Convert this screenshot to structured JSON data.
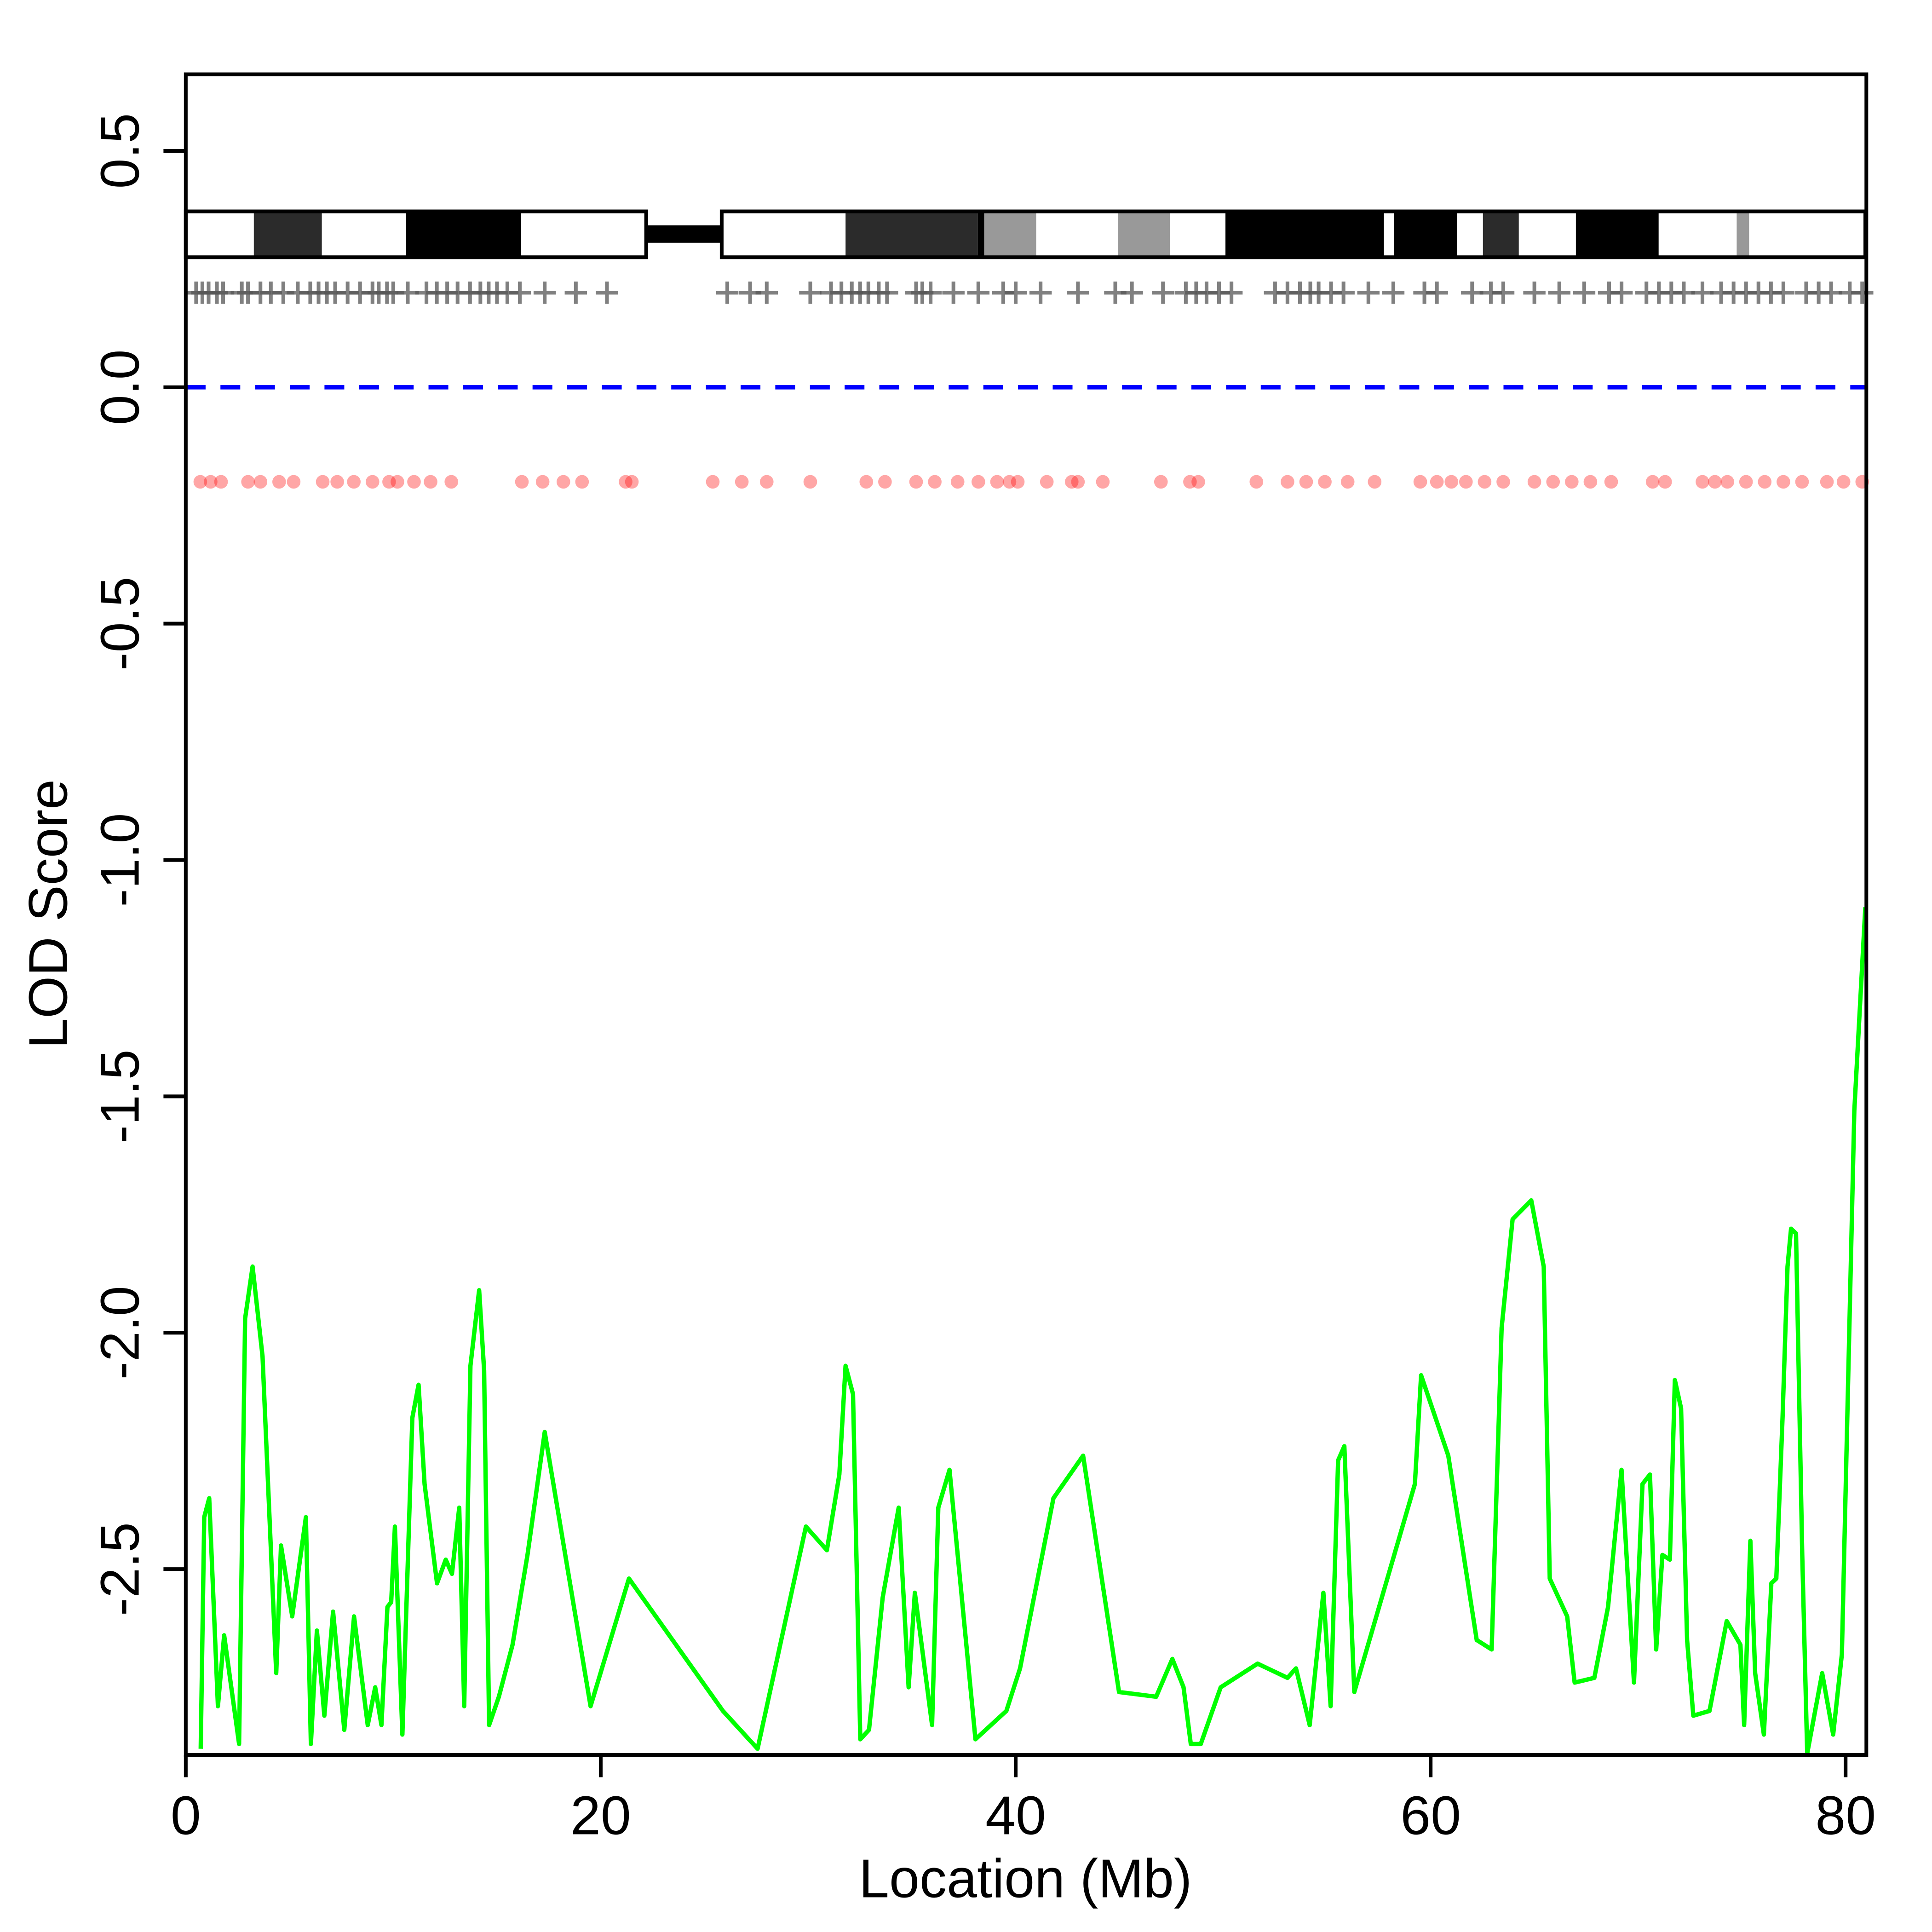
{
  "chart_data": {
    "type": "line",
    "xlabel": "Location (Mb)",
    "ylabel": "LOD Score",
    "xlim": [
      0,
      81
    ],
    "ylim": [
      -2.893,
      0.662
    ],
    "xticks": [
      0,
      20,
      40,
      60,
      80
    ],
    "yticks": [
      0.5,
      {
        "value": 0,
        "label": "0.0"
      },
      -0.5,
      {
        "value": -1,
        "label": "-1.0"
      },
      -1.5,
      {
        "value": -2,
        "label": "-2.0"
      },
      -2.5
    ],
    "hline": {
      "value": 0,
      "color": "#0000ff"
    },
    "line": {
      "color": "#00ff00",
      "x": [
        0.72,
        0.89,
        1.13,
        1.55,
        1.85,
        2.57,
        2.86,
        3.22,
        3.7,
        4.36,
        4.59,
        5.13,
        5.79,
        6.03,
        6.32,
        6.68,
        7.1,
        7.64,
        8.11,
        8.77,
        9.13,
        9.43,
        9.72,
        9.9,
        10.08,
        10.44,
        10.92,
        11.22,
        11.51,
        12.11,
        12.53,
        12.83,
        13.18,
        13.42,
        13.72,
        14.14,
        14.38,
        14.62,
        15.09,
        15.75,
        16.47,
        17.3,
        19.51,
        21.36,
        25.89,
        27.56,
        29.89,
        30.9,
        31.5,
        31.8,
        32.16,
        32.51,
        32.93,
        33.59,
        34.36,
        34.84,
        35.14,
        35.97,
        36.27,
        36.81,
        38.06,
        39.55,
        40.21,
        41.82,
        43.25,
        44.98,
        46.77,
        47.55,
        48.09,
        48.44,
        48.92,
        49.88,
        51.66,
        53.1,
        53.51,
        54.17,
        54.83,
        55.18,
        55.54,
        55.84,
        56.32,
        59.24,
        59.54,
        60.85,
        62.22,
        62.94,
        63.42,
        63.95,
        64.85,
        65.45,
        65.74,
        66.58,
        66.94,
        67.89,
        68.55,
        69.2,
        69.8,
        70.21,
        70.57,
        70.87,
        71.17,
        71.53,
        71.77,
        72.07,
        72.36,
        72.66,
        73.44,
        74.27,
        74.93,
        75.11,
        75.41,
        75.64,
        76.06,
        76.42,
        76.66,
        76.96,
        77.2,
        77.37,
        77.61,
        77.91,
        78.15,
        78.87,
        79.4,
        79.82,
        80.42,
        80.95
      ],
      "values": [
        -2.88,
        -2.39,
        -2.35,
        -2.79,
        -2.64,
        -2.87,
        -1.97,
        -1.86,
        -2.05,
        -2.72,
        -2.45,
        -2.6,
        -2.39,
        -2.87,
        -2.63,
        -2.81,
        -2.59,
        -2.84,
        -2.6,
        -2.83,
        -2.75,
        -2.83,
        -2.58,
        -2.57,
        -2.41,
        -2.85,
        -2.18,
        -2.11,
        -2.32,
        -2.53,
        -2.48,
        -2.51,
        -2.37,
        -2.79,
        -2.07,
        -1.91,
        -2.08,
        -2.83,
        -2.77,
        -2.66,
        -2.47,
        -2.21,
        -2.79,
        -2.52,
        -2.8,
        -2.88,
        -2.41,
        -2.46,
        -2.3,
        -2.07,
        -2.13,
        -2.86,
        -2.84,
        -2.56,
        -2.37,
        -2.75,
        -2.55,
        -2.83,
        -2.37,
        -2.29,
        -2.86,
        -2.8,
        -2.71,
        -2.35,
        -2.26,
        -2.76,
        -2.77,
        -2.69,
        -2.75,
        -2.87,
        -2.87,
        -2.75,
        -2.7,
        -2.73,
        -2.71,
        -2.83,
        -2.55,
        -2.79,
        -2.27,
        -2.24,
        -2.76,
        -2.32,
        -2.09,
        -2.26,
        -2.65,
        -2.67,
        -1.99,
        -1.76,
        -1.72,
        -1.86,
        -2.52,
        -2.6,
        -2.74,
        -2.73,
        -2.58,
        -2.29,
        -2.74,
        -2.32,
        -2.3,
        -2.67,
        -2.47,
        -2.48,
        -2.1,
        -2.16,
        -2.65,
        -2.81,
        -2.8,
        -2.61,
        -2.66,
        -2.83,
        -2.44,
        -2.72,
        -2.85,
        -2.53,
        -2.52,
        -2.18,
        -1.86,
        -1.78,
        -1.79,
        -2.47,
        -2.89,
        -2.72,
        -2.85,
        -2.68,
        -1.53,
        -1.1
      ]
    },
    "markers": {
      "y": 0.2,
      "color": "#555555",
      "x": [
        0.5,
        0.8,
        1.1,
        1.5,
        1.8,
        2.7,
        3.0,
        3.6,
        4.1,
        4.7,
        5.4,
        6.0,
        6.4,
        6.8,
        7.2,
        7.8,
        8.4,
        9.0,
        9.3,
        9.7,
        10.0,
        10.7,
        11.6,
        12.1,
        12.6,
        13.1,
        13.7,
        14.2,
        14.6,
        15.0,
        15.5,
        16.1,
        17.3,
        18.8,
        20.3,
        26.1,
        27.2,
        28.0,
        30.1,
        31.1,
        31.6,
        32.1,
        32.5,
        32.9,
        33.4,
        33.8,
        35.2,
        35.5,
        35.9,
        37.0,
        38.2,
        39.4,
        40.0,
        41.2,
        43.0,
        44.8,
        45.6,
        47.1,
        48.2,
        48.7,
        49.2,
        49.8,
        50.4,
        52.5,
        53.1,
        53.7,
        54.2,
        54.6,
        55.2,
        55.8,
        57.0,
        58.2,
        59.7,
        60.3,
        62.0,
        62.9,
        63.5,
        65.0,
        66.2,
        67.4,
        68.6,
        69.2,
        70.4,
        71.0,
        71.6,
        72.2,
        73.1,
        74.0,
        74.6,
        75.2,
        75.8,
        76.4,
        77.0,
        78.1,
        78.7,
        79.3,
        80.2,
        80.8
      ]
    },
    "points": {
      "y": -0.2,
      "color": "#ff0000",
      "x": [
        0.7,
        1.2,
        1.7,
        3.0,
        3.6,
        4.5,
        5.2,
        6.6,
        7.3,
        8.1,
        9.0,
        9.8,
        10.2,
        11.0,
        11.8,
        12.8,
        16.2,
        17.2,
        18.2,
        19.1,
        21.2,
        21.5,
        25.4,
        26.8,
        28.0,
        30.1,
        32.8,
        33.7,
        35.2,
        36.1,
        37.2,
        38.2,
        39.1,
        39.7,
        40.1,
        41.5,
        42.7,
        43.0,
        44.2,
        47.0,
        48.4,
        48.8,
        51.6,
        53.1,
        54.0,
        54.9,
        56.0,
        57.3,
        59.5,
        60.3,
        61.0,
        61.7,
        62.6,
        63.5,
        65.0,
        65.9,
        66.8,
        67.7,
        68.7,
        70.7,
        71.3,
        73.1,
        73.7,
        74.3,
        75.2,
        76.1,
        77.0,
        77.9,
        79.1,
        79.9,
        80.8
      ]
    },
    "ideogram": {
      "ylim": [
        0.275,
        0.372
      ],
      "centromere": 0.324,
      "bands": [
        {
          "start": 0,
          "end": 3.28,
          "color": "#ffffff"
        },
        {
          "start": 3.28,
          "end": 6.56,
          "color": "#2b2b2b"
        },
        {
          "start": 6.56,
          "end": 10.62,
          "color": "#ffffff"
        },
        {
          "start": 10.62,
          "end": 16.17,
          "color": "#000000"
        },
        {
          "start": 16.17,
          "end": 22.19,
          "color": "#ffffff"
        },
        {
          "start": 25.83,
          "end": 31.8,
          "color": "#ffffff"
        },
        {
          "start": 31.8,
          "end": 38.18,
          "color": "#2b2b2b"
        },
        {
          "start": 38.18,
          "end": 38.48,
          "color": "#000000"
        },
        {
          "start": 38.48,
          "end": 40.99,
          "color": "#999999"
        },
        {
          "start": 40.99,
          "end": 44.92,
          "color": "#ffffff"
        },
        {
          "start": 44.92,
          "end": 47.43,
          "color": "#999999"
        },
        {
          "start": 47.43,
          "end": 50.11,
          "color": "#ffffff"
        },
        {
          "start": 50.11,
          "end": 57.75,
          "color": "#000000"
        },
        {
          "start": 57.75,
          "end": 58.23,
          "color": "#ffffff"
        },
        {
          "start": 58.23,
          "end": 61.27,
          "color": "#000000"
        },
        {
          "start": 61.27,
          "end": 62.52,
          "color": "#ffffff"
        },
        {
          "start": 62.52,
          "end": 64.25,
          "color": "#2b2b2b"
        },
        {
          "start": 64.25,
          "end": 67.0,
          "color": "#ffffff"
        },
        {
          "start": 67.0,
          "end": 70.99,
          "color": "#000000"
        },
        {
          "start": 70.99,
          "end": 74.75,
          "color": "#ffffff"
        },
        {
          "start": 74.75,
          "end": 75.35,
          "color": "#999999"
        },
        {
          "start": 75.35,
          "end": 80.95,
          "color": "#ffffff"
        }
      ]
    }
  }
}
